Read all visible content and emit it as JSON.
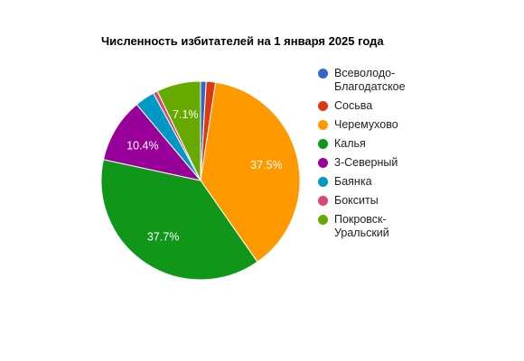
{
  "chart_data": {
    "type": "pie",
    "title": "Численность избитателей на 1 января 2025 года",
    "legend_position": "right",
    "slices": [
      {
        "label": "Всеволодо-\nБлагодатское",
        "value": 0.9,
        "color": "#3366cc",
        "data_label": ""
      },
      {
        "label": "Сосьва",
        "value": 1.5,
        "color": "#dc3912",
        "data_label": ""
      },
      {
        "label": "Черемухово",
        "value": 37.5,
        "color": "#ff9900",
        "data_label": "37.5%"
      },
      {
        "label": "Калья",
        "value": 37.7,
        "color": "#109618",
        "data_label": "37.7%"
      },
      {
        "label": "3-Северный",
        "value": 10.4,
        "color": "#990099",
        "data_label": "10.4%"
      },
      {
        "label": "Баянка",
        "value": 3.2,
        "color": "#0099c6",
        "data_label": ""
      },
      {
        "label": "Бокситы",
        "value": 0.7,
        "color": "#dd4477",
        "data_label": ""
      },
      {
        "label": "Покровск-\nУральский",
        "value": 7.1,
        "color": "#66aa00",
        "data_label": "7.1%"
      }
    ]
  }
}
